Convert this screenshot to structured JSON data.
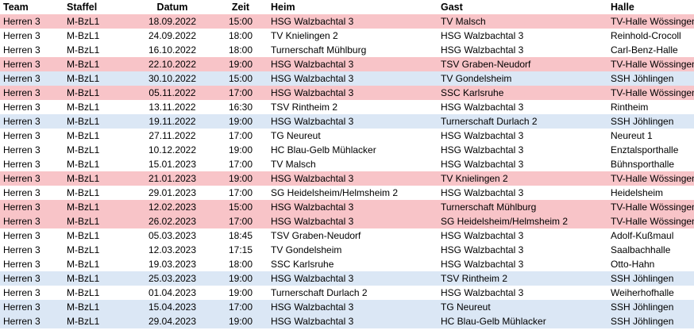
{
  "headers": {
    "team": "Team",
    "staffel": "Staffel",
    "datum": "Datum",
    "zeit": "Zeit",
    "heim": "Heim",
    "gast": "Gast",
    "halle": "Halle"
  },
  "colors": {
    "home_red": "#f8c4c8",
    "home_blue": "#dbe7f5",
    "away": "#ffffff"
  },
  "rows": [
    {
      "team": "Herren 3",
      "staffel": "M-BzL1",
      "datum": "18.09.2022",
      "zeit": "15:00",
      "heim": "HSG Walzbachtal 3",
      "gast": "TV Malsch",
      "halle": "TV-Halle Wössingen",
      "style": "home-red"
    },
    {
      "team": "Herren 3",
      "staffel": "M-BzL1",
      "datum": "24.09.2022",
      "zeit": "18:00",
      "heim": "TV Knielingen 2",
      "gast": "HSG Walzbachtal 3",
      "halle": "Reinhold-Crocoll",
      "style": "away"
    },
    {
      "team": "Herren 3",
      "staffel": "M-BzL1",
      "datum": "16.10.2022",
      "zeit": "18:00",
      "heim": "Turnerschaft Mühlburg",
      "gast": "HSG Walzbachtal 3",
      "halle": "Carl-Benz-Halle",
      "style": "away"
    },
    {
      "team": "Herren 3",
      "staffel": "M-BzL1",
      "datum": "22.10.2022",
      "zeit": "19:00",
      "heim": "HSG Walzbachtal 3",
      "gast": "TSV Graben-Neudorf",
      "halle": "TV-Halle Wössingen",
      "style": "home-red"
    },
    {
      "team": "Herren 3",
      "staffel": "M-BzL1",
      "datum": "30.10.2022",
      "zeit": "15:00",
      "heim": "HSG Walzbachtal 3",
      "gast": "TV Gondelsheim",
      "halle": "SSH Jöhlingen",
      "style": "home-blue"
    },
    {
      "team": "Herren 3",
      "staffel": "M-BzL1",
      "datum": "05.11.2022",
      "zeit": "17:00",
      "heim": "HSG Walzbachtal 3",
      "gast": "SSC Karlsruhe",
      "halle": "TV-Halle Wössingen",
      "style": "home-red"
    },
    {
      "team": "Herren 3",
      "staffel": "M-BzL1",
      "datum": "13.11.2022",
      "zeit": "16:30",
      "heim": "TSV Rintheim 2",
      "gast": "HSG Walzbachtal 3",
      "halle": "Rintheim",
      "style": "away"
    },
    {
      "team": "Herren 3",
      "staffel": "M-BzL1",
      "datum": "19.11.2022",
      "zeit": "19:00",
      "heim": "HSG Walzbachtal 3",
      "gast": "Turnerschaft Durlach 2",
      "halle": "SSH Jöhlingen",
      "style": "home-blue"
    },
    {
      "team": "Herren 3",
      "staffel": "M-BzL1",
      "datum": "27.11.2022",
      "zeit": "17:00",
      "heim": "TG Neureut",
      "gast": "HSG Walzbachtal 3",
      "halle": "Neureut 1",
      "style": "away"
    },
    {
      "team": "Herren 3",
      "staffel": "M-BzL1",
      "datum": "10.12.2022",
      "zeit": "19:00",
      "heim": "HC Blau-Gelb Mühlacker",
      "gast": "HSG Walzbachtal 3",
      "halle": "Enztalsporthalle",
      "style": "away"
    },
    {
      "team": "Herren 3",
      "staffel": "M-BzL1",
      "datum": "15.01.2023",
      "zeit": "17:00",
      "heim": "TV Malsch",
      "gast": "HSG Walzbachtal 3",
      "halle": "Bühnsporthalle",
      "style": "away"
    },
    {
      "team": "Herren 3",
      "staffel": "M-BzL1",
      "datum": "21.01.2023",
      "zeit": "19:00",
      "heim": "HSG Walzbachtal 3",
      "gast": "TV Knielingen 2",
      "halle": "TV-Halle Wössingen",
      "style": "home-red"
    },
    {
      "team": "Herren 3",
      "staffel": "M-BzL1",
      "datum": "29.01.2023",
      "zeit": "17:00",
      "heim": "SG Heidelsheim/Helmsheim 2",
      "gast": "HSG Walzbachtal 3",
      "halle": "Heidelsheim",
      "style": "away"
    },
    {
      "team": "Herren 3",
      "staffel": "M-BzL1",
      "datum": "12.02.2023",
      "zeit": "15:00",
      "heim": "HSG Walzbachtal 3",
      "gast": "Turnerschaft Mühlburg",
      "halle": "TV-Halle Wössingen",
      "style": "home-red"
    },
    {
      "team": "Herren 3",
      "staffel": "M-BzL1",
      "datum": "26.02.2023",
      "zeit": "17:00",
      "heim": "HSG Walzbachtal 3",
      "gast": "SG Heidelsheim/Helmsheim 2",
      "halle": "TV-Halle Wössingen",
      "style": "home-red"
    },
    {
      "team": "Herren 3",
      "staffel": "M-BzL1",
      "datum": "05.03.2023",
      "zeit": "18:45",
      "heim": "TSV Graben-Neudorf",
      "gast": "HSG Walzbachtal 3",
      "halle": "Adolf-Kußmaul",
      "style": "away"
    },
    {
      "team": "Herren 3",
      "staffel": "M-BzL1",
      "datum": "12.03.2023",
      "zeit": "17:15",
      "heim": "TV Gondelsheim",
      "gast": "HSG Walzbachtal 3",
      "halle": "Saalbachhalle",
      "style": "away"
    },
    {
      "team": "Herren 3",
      "staffel": "M-BzL1",
      "datum": "19.03.2023",
      "zeit": "18:00",
      "heim": "SSC Karlsruhe",
      "gast": "HSG Walzbachtal 3",
      "halle": "Otto-Hahn",
      "style": "away"
    },
    {
      "team": "Herren 3",
      "staffel": "M-BzL1",
      "datum": "25.03.2023",
      "zeit": "19:00",
      "heim": "HSG Walzbachtal 3",
      "gast": "TSV Rintheim 2",
      "halle": "SSH Jöhlingen",
      "style": "home-blue"
    },
    {
      "team": "Herren 3",
      "staffel": "M-BzL1",
      "datum": "01.04.2023",
      "zeit": "19:00",
      "heim": "Turnerschaft Durlach 2",
      "gast": "HSG Walzbachtal 3",
      "halle": "Weiherhofhalle",
      "style": "away"
    },
    {
      "team": "Herren 3",
      "staffel": "M-BzL1",
      "datum": "15.04.2023",
      "zeit": "17:00",
      "heim": "HSG Walzbachtal 3",
      "gast": "TG Neureut",
      "halle": "SSH Jöhlingen",
      "style": "home-blue"
    },
    {
      "team": "Herren 3",
      "staffel": "M-BzL1",
      "datum": "29.04.2023",
      "zeit": "19:00",
      "heim": "HSG Walzbachtal 3",
      "gast": "HC Blau-Gelb Mühlacker",
      "halle": "SSH Jöhlingen",
      "style": "home-blue"
    }
  ]
}
